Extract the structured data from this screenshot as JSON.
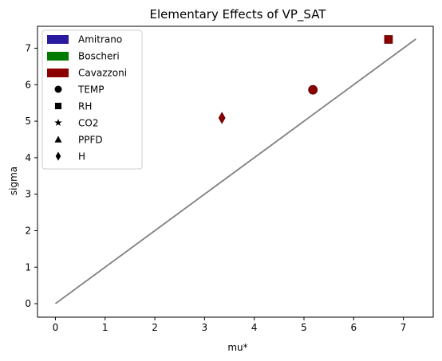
{
  "chart_data": {
    "type": "scatter",
    "title": "Elementary Effects of VP_SAT",
    "xlabel": "mu*",
    "ylabel": "sigma",
    "xlim": [
      -0.36,
      7.6
    ],
    "ylim": [
      -0.37,
      7.6
    ],
    "x_ticks": [
      0,
      1,
      2,
      3,
      4,
      5,
      6,
      7
    ],
    "y_ticks": [
      0,
      1,
      2,
      3,
      4,
      5,
      6,
      7
    ],
    "grid": false,
    "legend_position": "top-left",
    "reference_line": {
      "from": [
        0,
        0
      ],
      "to": [
        7.25,
        7.25
      ],
      "color": "#808080"
    },
    "legend": {
      "models": [
        {
          "label": "Amitrano",
          "color": "#2a1aa0"
        },
        {
          "label": "Boscheri",
          "color": "#007a00"
        },
        {
          "label": "Cavazzoni",
          "color": "#8b0000"
        }
      ],
      "variables": [
        {
          "label": "TEMP",
          "marker": "circle"
        },
        {
          "label": "RH",
          "marker": "square"
        },
        {
          "label": "CO2",
          "marker": "star"
        },
        {
          "label": "PPFD",
          "marker": "triangle"
        },
        {
          "label": "H",
          "marker": "diamond"
        }
      ]
    },
    "points": [
      {
        "model": "Cavazzoni",
        "variable": "RH",
        "marker": "square",
        "color": "#8b0000",
        "x": 6.7,
        "y": 7.24
      },
      {
        "model": "Cavazzoni",
        "variable": "TEMP",
        "marker": "circle",
        "color": "#8b0000",
        "x": 5.18,
        "y": 5.86
      },
      {
        "model": "Cavazzoni",
        "variable": "H",
        "marker": "diamond",
        "color": "#8b0000",
        "x": 3.35,
        "y": 5.09
      }
    ]
  }
}
